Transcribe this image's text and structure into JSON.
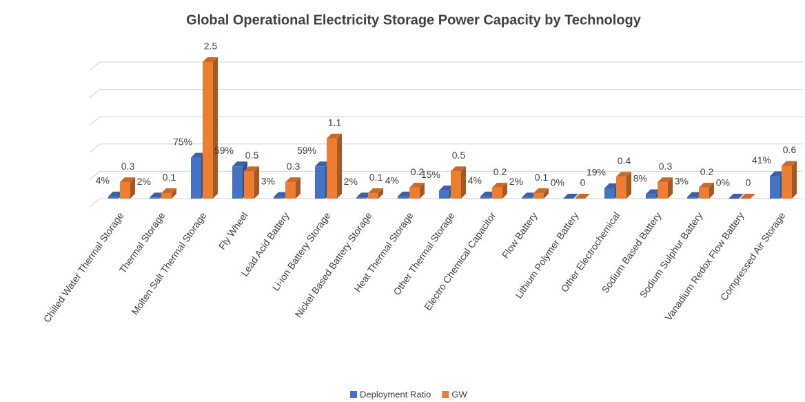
{
  "chart_data": {
    "type": "bar3d",
    "title": "Global Operational Electricity Storage Power Capacity by Technology",
    "categories": [
      "Chilled Water Thermal Storage",
      "Thermal Storage",
      "Molten Salt Thermal Storage",
      "Fly Wheel",
      "Lead Acid Battery",
      "Li-ion Battery Storage",
      "Nickel Based Battery Storage",
      "Heat Thermal Storage",
      "Other Thermal Storage",
      "Electro Chemical Capacitor",
      "Flow Battery",
      "Lithium Polymer Battery",
      "Other Electrochemical",
      "Sodium Based Battery",
      "Sodium Sulphur Battery",
      "Vanadium Redox Flow Battery",
      "Compressed Air Storage"
    ],
    "series": [
      {
        "name": "Deployment Ratio",
        "color": "#4472c4",
        "values": [
          0.04,
          0.02,
          0.75,
          0.59,
          0.03,
          0.59,
          0.02,
          0.04,
          0.15,
          0.04,
          0.02,
          0,
          0.19,
          0.08,
          0.03,
          0,
          0.41
        ],
        "value_labels": [
          "4%",
          "2%",
          "75%",
          "59%",
          "3%",
          "59%",
          "2%",
          "4%",
          "15%",
          "4%",
          "2%",
          "0%",
          "19%",
          "8%",
          "3%",
          "0%",
          "41%"
        ]
      },
      {
        "name": "GW",
        "color": "#ed7d31",
        "values": [
          0.3,
          0.1,
          2.5,
          0.5,
          0.3,
          1.1,
          0.1,
          0.2,
          0.5,
          0.2,
          0.1,
          0,
          0.4,
          0.3,
          0.2,
          0,
          0.6
        ]
      }
    ],
    "ylim": [
      0,
      2.5
    ],
    "yticks": [
      0,
      0.5,
      1,
      1.5,
      2,
      2.5
    ],
    "grid": true,
    "legend": "bottom"
  }
}
